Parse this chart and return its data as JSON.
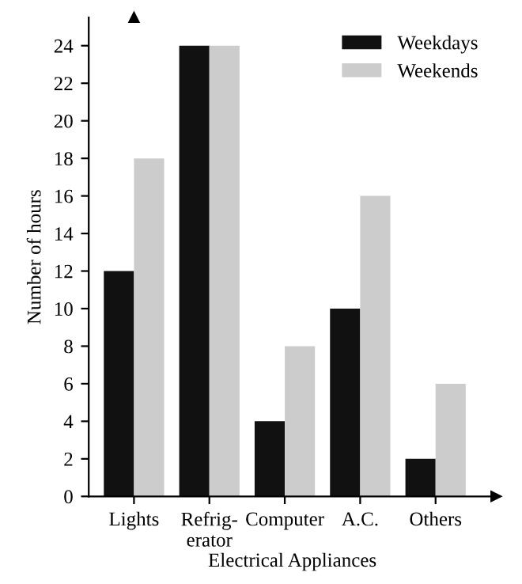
{
  "chart_data": {
    "type": "bar",
    "xlabel": "Electrical Appliances",
    "ylabel": "Number of hours",
    "categories": [
      "Lights",
      "Refrig-\nerator",
      "Computer",
      "A.C.",
      "Others"
    ],
    "series": [
      {
        "name": "Weekdays",
        "color": "#111111",
        "values": [
          12,
          24,
          4,
          10,
          2
        ]
      },
      {
        "name": "Weekends",
        "color": "#cccccc",
        "values": [
          18,
          24,
          8,
          16,
          6
        ]
      }
    ],
    "ylim": [
      0,
      25.5
    ],
    "yticks": [
      0,
      2,
      4,
      6,
      8,
      10,
      12,
      14,
      16,
      18,
      20,
      22,
      24
    ],
    "grid": false,
    "legend": "top right"
  }
}
